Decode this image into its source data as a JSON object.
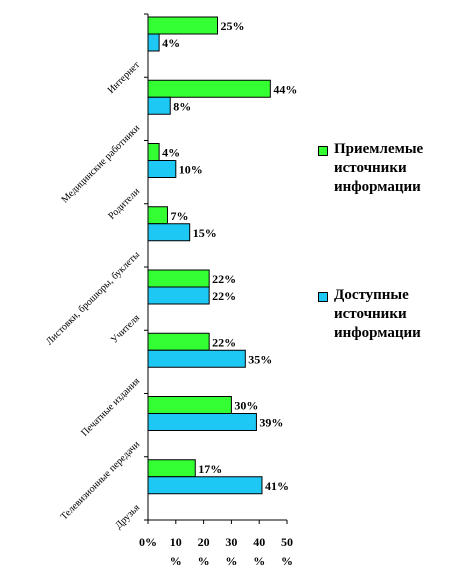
{
  "chart_data": {
    "type": "bar",
    "orientation": "horizontal",
    "categories": [
      "Интернет",
      "Медицинские работники",
      "Родители",
      "Листовки, брошюры, буклеты",
      "Учителя",
      "Печатные издания",
      "Телевизионные передачи",
      "Друзья"
    ],
    "series": [
      {
        "name": "Приемлемые источники информации",
        "color": "#33ff33",
        "values": [
          25,
          44,
          4,
          7,
          22,
          22,
          30,
          17
        ]
      },
      {
        "name": "Доступные источники информации",
        "color": "#1ec8f5",
        "values": [
          4,
          8,
          10,
          15,
          22,
          35,
          39,
          41
        ]
      }
    ],
    "xlim": [
      0,
      50
    ],
    "xticks": [
      {
        "value": 0,
        "label": "0%"
      },
      {
        "value": 10,
        "label": "10 %"
      },
      {
        "value": 20,
        "label": "20 %"
      },
      {
        "value": 30,
        "label": "30 %"
      },
      {
        "value": 40,
        "label": "40 %"
      },
      {
        "value": 50,
        "label": "50 %"
      }
    ],
    "value_suffix": "%",
    "grid": false,
    "legend_position": "right"
  }
}
